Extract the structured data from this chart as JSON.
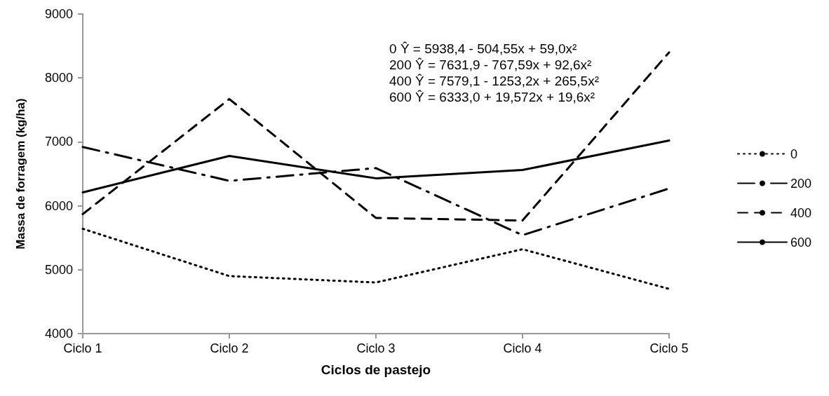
{
  "chart_data": {
    "type": "line",
    "xlabel": "Ciclos de pastejo",
    "ylabel": "Massa de forragem (kg/ha)",
    "categories": [
      "Ciclo 1",
      "Ciclo 2",
      "Ciclo 3",
      "Ciclo 4",
      "Ciclo 5"
    ],
    "series": [
      {
        "name": "0",
        "color": "#000000",
        "line_style": "dotted",
        "values": [
          5640,
          4900,
          4800,
          5320,
          4700
        ]
      },
      {
        "name": "200",
        "color": "#000000",
        "line_style": "dashdot",
        "values": [
          6920,
          6390,
          6590,
          5540,
          6270
        ]
      },
      {
        "name": "400",
        "color": "#000000",
        "line_style": "dashed",
        "values": [
          5870,
          7670,
          5810,
          5770,
          8400
        ]
      },
      {
        "name": "600",
        "color": "#000000",
        "line_style": "solid",
        "values": [
          6210,
          6780,
          6430,
          6560,
          7020
        ]
      }
    ],
    "ylim": [
      4000,
      9000
    ],
    "yticks": [
      4000,
      5000,
      6000,
      7000,
      8000,
      9000
    ],
    "grid": false,
    "legend": "right",
    "marker": "none",
    "annotations": [
      "0 Ŷ = 5938,4 - 504,55x + 59,0x²",
      "200 Ŷ = 7631,9 - 767,59x + 92,6x²",
      "400 Ŷ = 7579,1 - 1253,2x + 265,5x²",
      "600 Ŷ = 6333,0 + 19,572x + 19,6x²"
    ]
  }
}
